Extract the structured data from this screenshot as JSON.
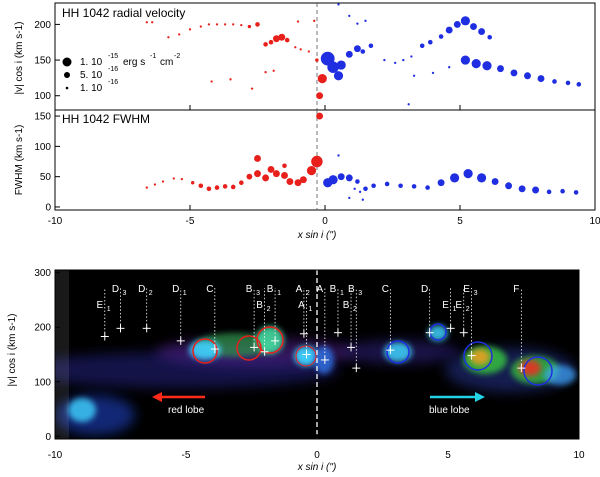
{
  "chart_data": [
    {
      "type": "scatter",
      "title": "HH 1042 radial velocity",
      "xlabel": "x sin i (\")",
      "ylabel": "|v| cos i (km s-1)",
      "xlim": [
        -10,
        10
      ],
      "ylim": [
        80,
        230
      ],
      "xticks": [
        "-10",
        "-5",
        "0",
        "5",
        "10"
      ],
      "yticks": [
        "100",
        "150",
        "200"
      ],
      "legend": [
        {
          "value": "1. 10",
          "exp": "-15",
          "unit": "erg s",
          "unit_exp": "-1",
          "unit2": "cm",
          "unit2_exp": "-2"
        },
        {
          "value": "5. 10",
          "exp": "-16"
        },
        {
          "value": "1. 10",
          "exp": "-16"
        }
      ],
      "series": [
        {
          "name": "red lobe",
          "color": "#e8201c",
          "points": [
            [
              -6.6,
              203,
              1
            ],
            [
              -6.4,
              203,
              1
            ],
            [
              -5.8,
              182,
              1
            ],
            [
              -5.4,
              186,
              1
            ],
            [
              -5.0,
              193,
              1
            ],
            [
              -4.6,
              197,
              1
            ],
            [
              -4.3,
              200,
              1
            ],
            [
              -4.0,
              200,
              1
            ],
            [
              -3.7,
              200,
              1
            ],
            [
              -3.4,
              200,
              1
            ],
            [
              -3.1,
              199,
              1
            ],
            [
              -2.8,
              197,
              1.5
            ],
            [
              -2.5,
              200,
              2
            ],
            [
              -2.2,
              172,
              2
            ],
            [
              -2.0,
              175,
              2
            ],
            [
              -1.8,
              180,
              3
            ],
            [
              -1.6,
              182,
              3
            ],
            [
              -1.4,
              178,
              2
            ],
            [
              -1.1,
              168,
              1
            ],
            [
              -0.9,
              165,
              1
            ],
            [
              -0.6,
              162,
              1
            ],
            [
              -0.3,
              150,
              1.5
            ],
            [
              -0.1,
              124,
              4
            ],
            [
              -0.2,
              100,
              3
            ],
            [
              -1.0,
              204,
              1
            ],
            [
              -1.9,
              135,
              1
            ],
            [
              -2.2,
              133,
              1
            ],
            [
              -4.2,
              120,
              1
            ],
            [
              -3.5,
              123,
              1
            ],
            [
              -2.7,
              110,
              1
            ],
            [
              -0.4,
              205,
              1
            ]
          ]
        },
        {
          "name": "blue lobe",
          "color": "#1f2ee0",
          "points": [
            [
              0.1,
              152,
              6
            ],
            [
              0.3,
              140,
              5
            ],
            [
              0.6,
              143,
              4
            ],
            [
              0.5,
              128,
              4
            ],
            [
              0.9,
              158,
              3
            ],
            [
              1.2,
              166,
              3
            ],
            [
              1.4,
              162,
              2
            ],
            [
              1.7,
              170,
              2
            ],
            [
              2.2,
              150,
              1
            ],
            [
              2.6,
              146,
              1
            ],
            [
              2.9,
              150,
              1
            ],
            [
              3.2,
              155,
              1
            ],
            [
              3.6,
              170,
              2
            ],
            [
              3.9,
              175,
              2
            ],
            [
              4.3,
              183,
              2
            ],
            [
              4.6,
              192,
              3
            ],
            [
              4.9,
              200,
              3
            ],
            [
              5.2,
              205,
              4
            ],
            [
              5.5,
              197,
              3
            ],
            [
              5.8,
              190,
              3
            ],
            [
              6.1,
              182,
              2
            ],
            [
              5.2,
              150,
              4
            ],
            [
              5.6,
              145,
              4
            ],
            [
              6.0,
              142,
              4
            ],
            [
              6.5,
              138,
              3
            ],
            [
              7.0,
              132,
              3
            ],
            [
              7.5,
              128,
              3
            ],
            [
              8.0,
              124,
              3
            ],
            [
              8.5,
              120,
              2
            ],
            [
              9.0,
              118,
              2
            ],
            [
              9.4,
              116,
              2
            ],
            [
              3.3,
              128,
              1
            ],
            [
              4.0,
              132,
              1
            ],
            [
              4.6,
              140,
              1
            ],
            [
              0.9,
              212,
              1
            ],
            [
              1.2,
              201,
              1
            ],
            [
              1.5,
              205,
              1
            ],
            [
              0.5,
              228,
              1
            ],
            [
              3.1,
              88,
              1
            ]
          ]
        }
      ]
    },
    {
      "type": "scatter",
      "title": "HH 1042 FWHM",
      "xlabel": "x sin i (\")",
      "ylabel": "FWHM (km s-1)",
      "xlim": [
        -10,
        10
      ],
      "ylim": [
        -5,
        160
      ],
      "xticks": [
        "-10",
        "-5",
        "0",
        "5",
        "10"
      ],
      "yticks": [
        "0",
        "50",
        "100",
        "150"
      ],
      "series": [
        {
          "name": "red lobe",
          "color": "#e8201c",
          "points": [
            [
              -6.6,
              32,
              1
            ],
            [
              -6.3,
              37,
              1
            ],
            [
              -6.0,
              42,
              1
            ],
            [
              -5.6,
              47,
              1
            ],
            [
              -5.3,
              46,
              1
            ],
            [
              -4.9,
              40,
              1.5
            ],
            [
              -4.6,
              35,
              2
            ],
            [
              -4.3,
              30,
              2
            ],
            [
              -4.0,
              32,
              2
            ],
            [
              -3.7,
              34,
              2
            ],
            [
              -3.4,
              33,
              2
            ],
            [
              -3.1,
              40,
              2
            ],
            [
              -2.8,
              50,
              2.5
            ],
            [
              -2.5,
              55,
              3
            ],
            [
              -2.2,
              48,
              3
            ],
            [
              -2.0,
              62,
              3
            ],
            [
              -1.8,
              55,
              3
            ],
            [
              -1.5,
              52,
              3
            ],
            [
              -1.3,
              42,
              3
            ],
            [
              -1.0,
              40,
              3
            ],
            [
              -0.8,
              45,
              3
            ],
            [
              -0.5,
              60,
              4
            ],
            [
              -0.3,
              75,
              5
            ],
            [
              -2.5,
              80,
              3
            ],
            [
              -0.2,
              150,
              3
            ],
            [
              -1.5,
              68,
              2
            ]
          ]
        },
        {
          "name": "blue lobe",
          "color": "#1f2ee0",
          "points": [
            [
              0.1,
              40,
              4
            ],
            [
              0.3,
              45,
              4
            ],
            [
              0.6,
              50,
              3
            ],
            [
              0.9,
              48,
              3
            ],
            [
              1.2,
              42,
              2
            ],
            [
              1.5,
              30,
              2
            ],
            [
              1.8,
              35,
              2
            ],
            [
              2.3,
              38,
              2
            ],
            [
              2.8,
              35,
              2
            ],
            [
              3.3,
              34,
              2
            ],
            [
              3.8,
              32,
              2
            ],
            [
              4.3,
              40,
              3
            ],
            [
              4.8,
              48,
              4
            ],
            [
              5.3,
              55,
              4
            ],
            [
              5.8,
              48,
              4
            ],
            [
              6.3,
              42,
              3
            ],
            [
              6.8,
              35,
              3
            ],
            [
              7.3,
              30,
              3
            ],
            [
              7.8,
              28,
              3
            ],
            [
              8.3,
              25,
              2
            ],
            [
              8.8,
              26,
              2
            ],
            [
              9.3,
              24,
              2
            ],
            [
              1.1,
              30,
              1
            ],
            [
              1.3,
              25,
              1
            ],
            [
              0.9,
              15,
              1
            ],
            [
              1.4,
              12,
              1
            ],
            [
              0.5,
              85,
              1
            ]
          ]
        }
      ]
    },
    {
      "type": "heatmap",
      "xlabel": "x sin i (\")",
      "ylabel": "|v| cos i (km s-1)",
      "xlim": [
        -10,
        10
      ],
      "ylim": [
        -5,
        305
      ],
      "xticks": [
        "-10",
        "-5",
        "0",
        "5",
        "10"
      ],
      "yticks": [
        "0",
        "100",
        "200",
        "300"
      ],
      "knots": [
        {
          "name": "E",
          "sub": "1",
          "x": -8.1,
          "y": 183,
          "side": "red"
        },
        {
          "name": "D",
          "sub": "3",
          "x": -7.5,
          "y": 198,
          "side": "red"
        },
        {
          "name": "D",
          "sub": "2",
          "x": -6.5,
          "y": 198,
          "side": "red"
        },
        {
          "name": "D",
          "sub": "1",
          "x": -5.2,
          "y": 175,
          "side": "red"
        },
        {
          "name": "C",
          "sub": "",
          "x": -3.9,
          "y": 160,
          "side": "red"
        },
        {
          "name": "B",
          "sub": "3",
          "x": -2.4,
          "y": 163,
          "side": "red"
        },
        {
          "name": "B",
          "sub": "2",
          "x": -2.0,
          "y": 155,
          "side": "red"
        },
        {
          "name": "B",
          "sub": "1",
          "x": -1.6,
          "y": 175,
          "side": "red"
        },
        {
          "name": "A",
          "sub": "2",
          "x": -0.5,
          "y": 188,
          "side": "red"
        },
        {
          "name": "A",
          "sub": "1",
          "x": -0.4,
          "y": 150,
          "side": "red"
        },
        {
          "name": "A",
          "sub": "",
          "x": 0.3,
          "y": 140,
          "side": "blue"
        },
        {
          "name": "B",
          "sub": "1",
          "x": 0.8,
          "y": 190,
          "side": "blue"
        },
        {
          "name": "B",
          "sub": "2",
          "x": 1.3,
          "y": 163,
          "side": "blue"
        },
        {
          "name": "B",
          "sub": "3",
          "x": 1.5,
          "y": 125,
          "side": "blue"
        },
        {
          "name": "C",
          "sub": "",
          "x": 2.8,
          "y": 158,
          "side": "blue"
        },
        {
          "name": "D",
          "sub": "",
          "x": 4.3,
          "y": 190,
          "side": "blue"
        },
        {
          "name": "E",
          "sub": "1",
          "x": 5.1,
          "y": 198,
          "side": "blue"
        },
        {
          "name": "E",
          "sub": "2",
          "x": 5.6,
          "y": 190,
          "side": "blue"
        },
        {
          "name": "E",
          "sub": "3",
          "x": 5.9,
          "y": 148,
          "side": "blue"
        },
        {
          "name": "F",
          "sub": "",
          "x": 7.8,
          "y": 125,
          "side": "blue"
        }
      ],
      "lobe_labels": [
        "red lobe",
        "blue lobe"
      ]
    }
  ],
  "colors": {
    "red": "#e8201c",
    "blue": "#1f2ee0",
    "cyan_arrow": "#22d3e6",
    "red_arrow": "#ff2a1a"
  }
}
